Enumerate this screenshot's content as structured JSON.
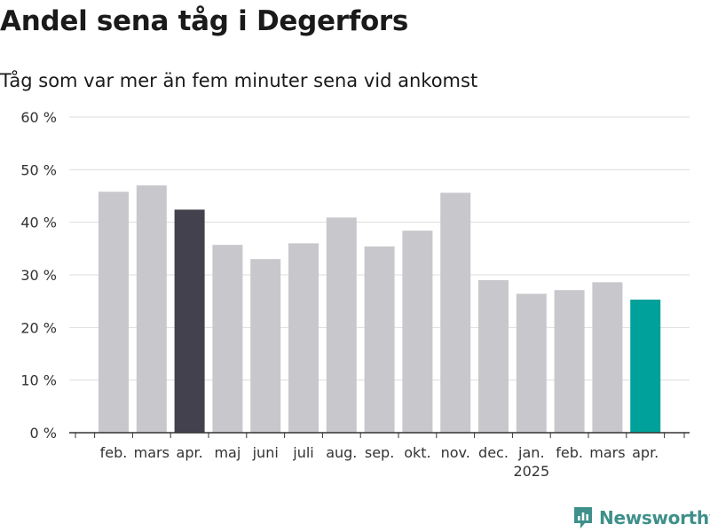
{
  "title": "Andel sena tåg i Degerfors",
  "subtitle": "Tåg som var mer än fem minuter sena vid ankomst",
  "brand": {
    "name": "Newsworthy",
    "icon": "newsworthy-logo-icon",
    "color": "#3f8f8a"
  },
  "colors": {
    "default_bar": "#c8c7cc",
    "highlight_prev_year": "#43414d",
    "highlight_latest": "#00a19a",
    "grid": "#dddddd",
    "axis": "#333333"
  },
  "chart_data": {
    "type": "bar",
    "title": "Andel sena tåg i Degerfors",
    "subtitle": "Tåg som var mer än fem minuter sena vid ankomst",
    "categories": [
      "feb.",
      "mars",
      "apr.",
      "maj",
      "juni",
      "juli",
      "aug.",
      "sep.",
      "okt.",
      "nov.",
      "dec.",
      "jan.",
      "feb.",
      "mars",
      "apr."
    ],
    "year_label": {
      "text": "2025",
      "category_index": 11
    },
    "values": [
      45.8,
      47.0,
      42.4,
      35.7,
      33.0,
      36.0,
      40.9,
      35.4,
      38.4,
      45.6,
      29.0,
      26.4,
      27.1,
      28.6,
      25.3
    ],
    "bar_colors": [
      "#c8c7cc",
      "#c8c7cc",
      "#43414d",
      "#c8c7cc",
      "#c8c7cc",
      "#c8c7cc",
      "#c8c7cc",
      "#c8c7cc",
      "#c8c7cc",
      "#c8c7cc",
      "#c8c7cc",
      "#c8c7cc",
      "#c8c7cc",
      "#c8c7cc",
      "#00a19a"
    ],
    "yticks": [
      "0 %",
      "10 %",
      "20 %",
      "30 %",
      "40 %",
      "50 %",
      "60 %"
    ],
    "ylim": [
      0,
      60
    ],
    "xlabel": "",
    "ylabel": "",
    "grid": true,
    "legend": "none"
  }
}
